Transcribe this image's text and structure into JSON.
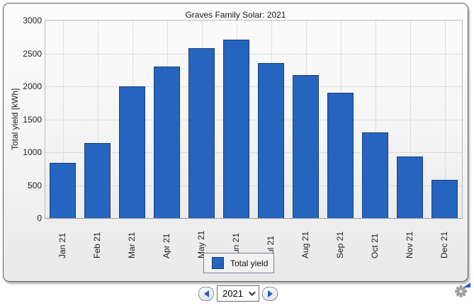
{
  "chart_data": {
    "type": "bar",
    "title": "Graves Family Solar: 2021",
    "xlabel": "",
    "ylabel": "Total yield [kWh]",
    "categories": [
      "Jan 21",
      "Feb 21",
      "Mar 21",
      "Apr 21",
      "May 21",
      "Jun 21",
      "Jul 21",
      "Aug 21",
      "Sep 21",
      "Oct 21",
      "Nov 21",
      "Dec 21"
    ],
    "values": [
      840,
      1140,
      2000,
      2300,
      2580,
      2715,
      2350,
      2170,
      1900,
      1300,
      935,
      580
    ],
    "ylim": [
      0,
      3000
    ],
    "ytick_step": 500,
    "grid": true,
    "legend": {
      "position": "bottom",
      "entries": [
        "Total yield"
      ]
    },
    "bar_color": "#2565c0",
    "bar_border_color": "#1d4076"
  },
  "controls": {
    "prev_label": "previous-year",
    "year_value": "2021",
    "next_label": "next-year"
  },
  "icons": {
    "prev": "left-triangle",
    "next": "right-triangle",
    "year_dropdown": "chevron-down",
    "settings": "gear-with-blue-arrow"
  },
  "colors": {
    "accent_blue": "#2565c0",
    "panel_border": "#5f5f68",
    "grid": "#c8c8c8"
  }
}
